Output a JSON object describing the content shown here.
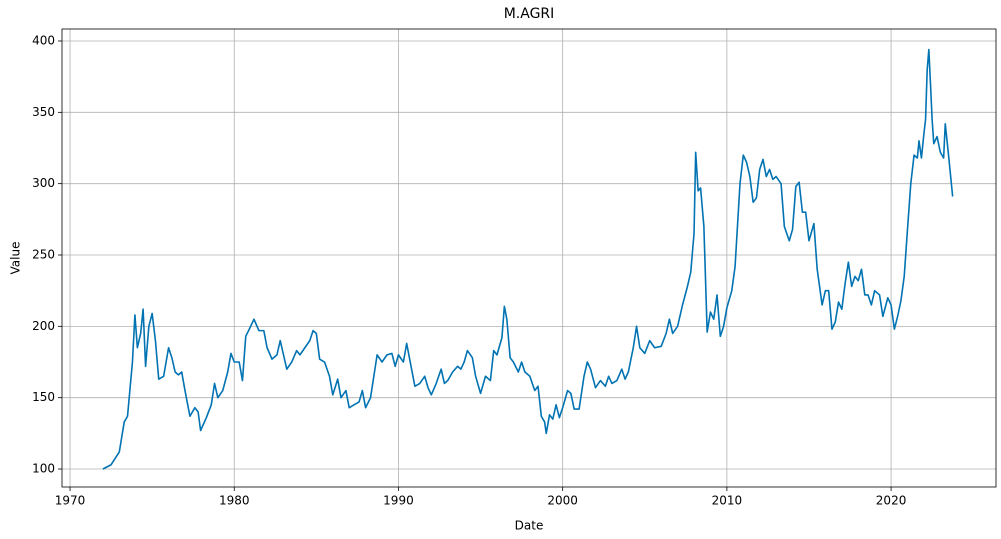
{
  "chart_data": {
    "type": "line",
    "title": "M.AGRI",
    "x_label": "Date",
    "y_label": "Value",
    "xlim": [
      1969.51,
      2026.39
    ],
    "ylim": [
      87.4,
      408.4
    ],
    "xticks": [
      1970,
      1980,
      1990,
      2000,
      2010,
      2020
    ],
    "yticks": [
      100,
      150,
      200,
      250,
      300,
      350,
      400
    ],
    "grid": true,
    "x": [
      1972.0,
      1972.5,
      1973.0,
      1973.3,
      1973.5,
      1973.8,
      1973.95,
      1974.1,
      1974.3,
      1974.45,
      1974.6,
      1974.8,
      1975.0,
      1975.2,
      1975.4,
      1975.7,
      1976.0,
      1976.2,
      1976.4,
      1976.6,
      1976.8,
      1977.0,
      1977.3,
      1977.6,
      1977.8,
      1977.95,
      1978.3,
      1978.6,
      1978.8,
      1979.0,
      1979.3,
      1979.6,
      1979.8,
      1980.0,
      1980.3,
      1980.5,
      1980.7,
      1981.0,
      1981.2,
      1981.5,
      1981.8,
      1982.0,
      1982.3,
      1982.6,
      1982.8,
      1983.0,
      1983.2,
      1983.5,
      1983.8,
      1984.0,
      1984.3,
      1984.6,
      1984.8,
      1985.0,
      1985.2,
      1985.5,
      1985.8,
      1986.0,
      1986.3,
      1986.5,
      1986.8,
      1987.0,
      1987.3,
      1987.6,
      1987.8,
      1988.0,
      1988.3,
      1988.5,
      1988.7,
      1989.0,
      1989.3,
      1989.6,
      1989.8,
      1990.0,
      1990.3,
      1990.5,
      1990.8,
      1991.0,
      1991.3,
      1991.6,
      1991.8,
      1992.0,
      1992.3,
      1992.6,
      1992.8,
      1993.0,
      1993.3,
      1993.6,
      1993.8,
      1994.0,
      1994.2,
      1994.5,
      1994.7,
      1995.0,
      1995.3,
      1995.6,
      1995.8,
      1996.0,
      1996.3,
      1996.45,
      1996.6,
      1996.8,
      1997.0,
      1997.3,
      1997.5,
      1997.7,
      1998.0,
      1998.3,
      1998.5,
      1998.7,
      1998.9,
      1999.0,
      1999.2,
      1999.4,
      1999.6,
      1999.8,
      2000.0,
      2000.3,
      2000.5,
      2000.7,
      2001.0,
      2001.3,
      2001.5,
      2001.7,
      2002.0,
      2002.3,
      2002.6,
      2002.8,
      2003.0,
      2003.3,
      2003.6,
      2003.8,
      2004.0,
      2004.3,
      2004.5,
      2004.7,
      2005.0,
      2005.3,
      2005.6,
      2006.0,
      2006.3,
      2006.5,
      2006.7,
      2007.0,
      2007.3,
      2007.6,
      2007.8,
      2008.0,
      2008.1,
      2008.25,
      2008.4,
      2008.6,
      2008.8,
      2009.0,
      2009.2,
      2009.4,
      2009.6,
      2009.8,
      2010.0,
      2010.3,
      2010.5,
      2010.8,
      2011.0,
      2011.2,
      2011.4,
      2011.6,
      2011.8,
      2012.0,
      2012.2,
      2012.4,
      2012.6,
      2012.8,
      2013.0,
      2013.3,
      2013.5,
      2013.8,
      2014.0,
      2014.2,
      2014.4,
      2014.6,
      2014.8,
      2015.0,
      2015.3,
      2015.5,
      2015.8,
      2016.0,
      2016.2,
      2016.4,
      2016.6,
      2016.8,
      2017.0,
      2017.2,
      2017.4,
      2017.6,
      2017.8,
      2018.0,
      2018.2,
      2018.4,
      2018.6,
      2018.8,
      2019.0,
      2019.3,
      2019.5,
      2019.8,
      2020.0,
      2020.2,
      2020.4,
      2020.6,
      2020.8,
      2021.0,
      2021.2,
      2021.4,
      2021.6,
      2021.7,
      2021.85,
      2022.0,
      2022.1,
      2022.2,
      2022.3,
      2022.4,
      2022.5,
      2022.6,
      2022.8,
      2023.0,
      2023.2,
      2023.3,
      2023.5,
      2023.75
    ],
    "series": [
      {
        "name": "M.AGRI",
        "color": "#0173b2",
        "values": [
          100,
          103,
          112,
          133,
          137,
          175,
          208,
          185,
          195,
          212,
          172,
          200,
          209,
          190,
          163,
          165,
          185,
          178,
          168,
          166,
          168,
          155,
          137,
          143,
          140,
          127,
          136,
          145,
          160,
          150,
          155,
          168,
          181,
          175,
          175,
          162,
          193,
          200,
          205,
          197,
          197,
          185,
          177,
          180,
          190,
          180,
          170,
          175,
          183,
          180,
          185,
          190,
          197,
          195,
          177,
          175,
          165,
          152,
          163,
          150,
          155,
          143,
          145,
          147,
          155,
          143,
          150,
          165,
          180,
          175,
          180,
          181,
          172,
          180,
          175,
          188,
          170,
          158,
          160,
          165,
          157,
          152,
          160,
          170,
          160,
          162,
          168,
          172,
          170,
          175,
          183,
          178,
          165,
          153,
          165,
          162,
          183,
          180,
          192,
          214,
          205,
          178,
          175,
          168,
          175,
          168,
          165,
          155,
          158,
          137,
          133,
          125,
          138,
          135,
          145,
          136,
          143,
          155,
          153,
          142,
          142,
          165,
          175,
          170,
          157,
          162,
          158,
          165,
          160,
          162,
          170,
          163,
          168,
          185,
          200,
          185,
          181,
          190,
          185,
          186,
          195,
          205,
          195,
          200,
          215,
          228,
          238,
          265,
          322,
          295,
          297,
          270,
          196,
          210,
          205,
          222,
          193,
          200,
          213,
          225,
          242,
          300,
          320,
          315,
          305,
          287,
          290,
          310,
          317,
          305,
          310,
          303,
          305,
          300,
          270,
          260,
          268,
          298,
          301,
          280,
          280,
          260,
          272,
          240,
          215,
          225,
          225,
          198,
          203,
          217,
          212,
          230,
          245,
          228,
          235,
          232,
          240,
          222,
          222,
          215,
          225,
          222,
          207,
          220,
          215,
          198,
          207,
          218,
          235,
          268,
          300,
          320,
          318,
          330,
          318,
          335,
          345,
          380,
          394,
          370,
          345,
          328,
          333,
          322,
          318,
          342,
          320,
          291
        ]
      }
    ]
  }
}
